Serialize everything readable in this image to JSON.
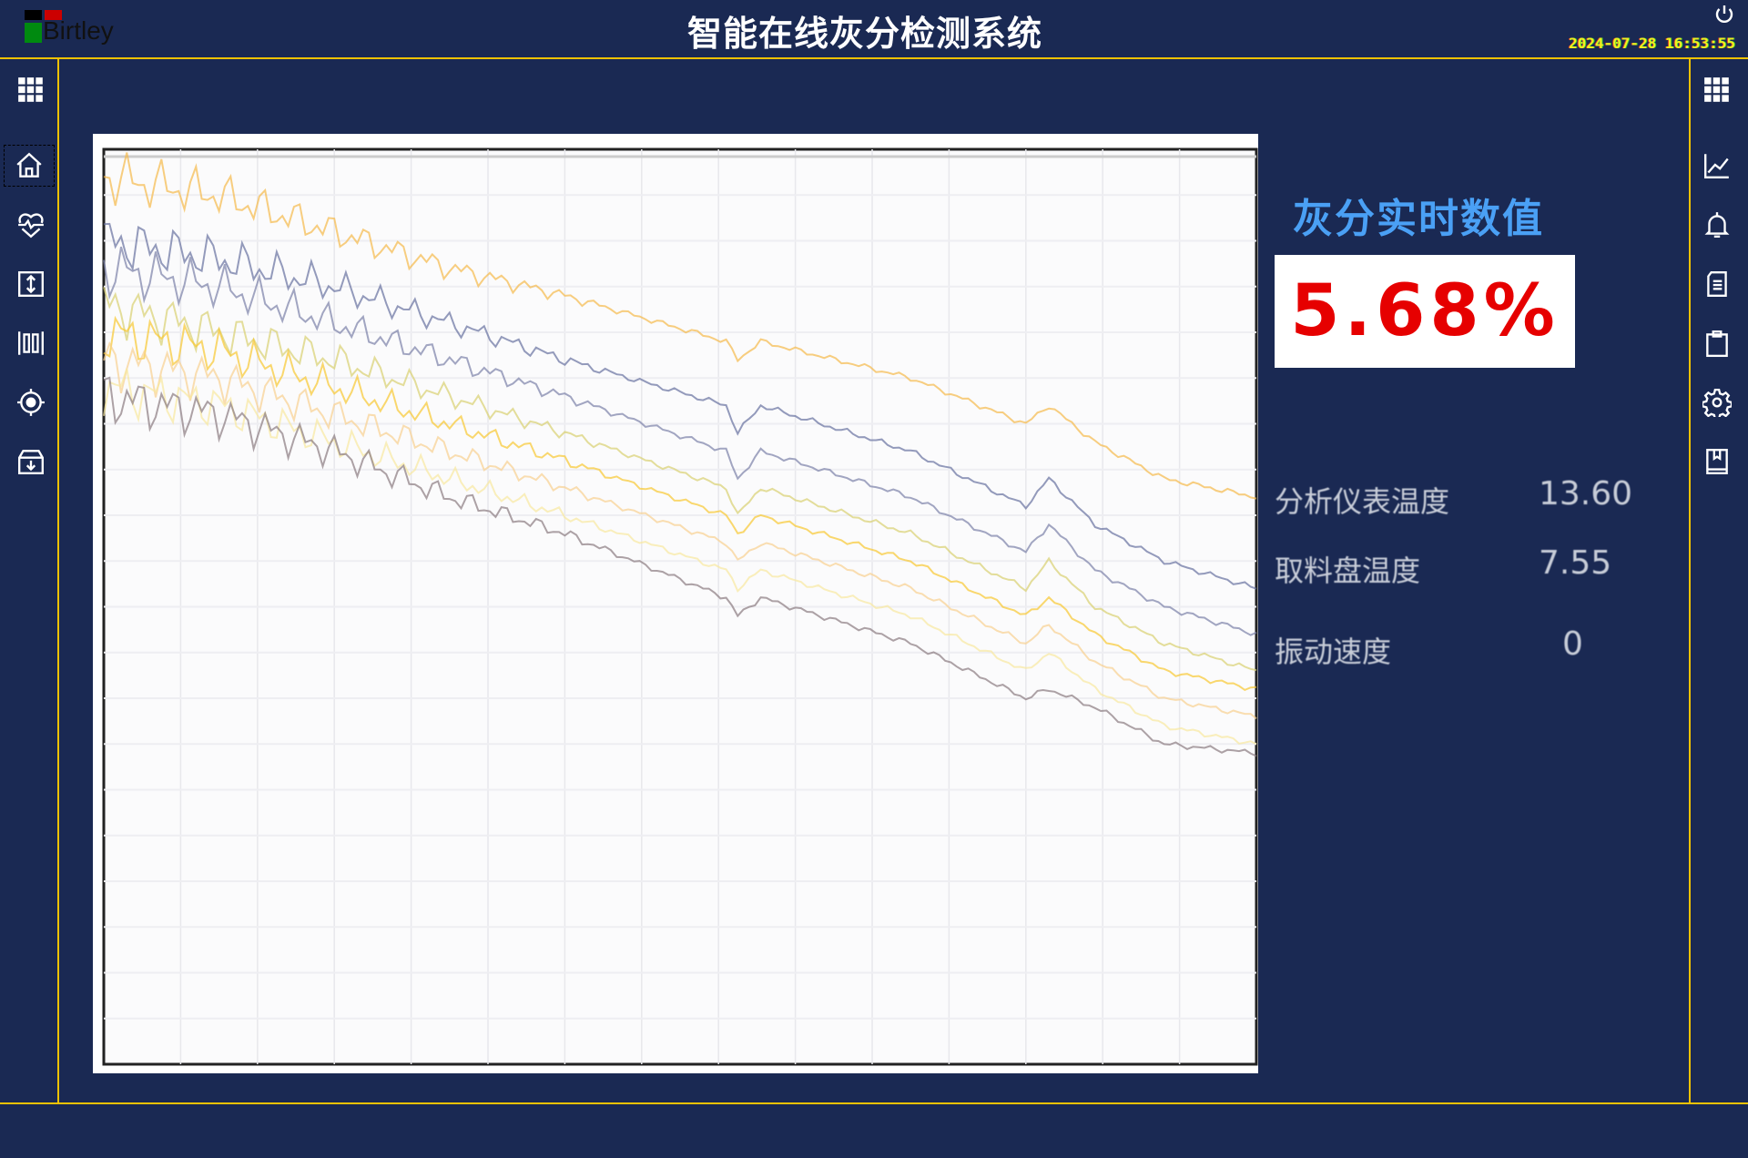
{
  "header": {
    "logo_text": "Birtley",
    "title": "智能在线灰分检测系统",
    "datetime": "2024-07-28  16:53:55"
  },
  "left_nav": [
    {
      "icon": "grid-icon"
    },
    {
      "icon": "home-icon",
      "selected": true
    },
    {
      "icon": "heart-pulse-icon"
    },
    {
      "icon": "vertical-arrows-icon"
    },
    {
      "icon": "columns-icon"
    },
    {
      "icon": "target-icon"
    },
    {
      "icon": "archive-download-icon"
    }
  ],
  "right_nav": [
    {
      "icon": "grid-icon"
    },
    {
      "icon": "line-chart-icon"
    },
    {
      "icon": "bell-icon"
    },
    {
      "icon": "document-icon"
    },
    {
      "icon": "clipboard-icon"
    },
    {
      "icon": "gear-icon"
    },
    {
      "icon": "book-icon"
    }
  ],
  "realtime": {
    "title": "灰分实时数值",
    "value": "5.68%",
    "value_color": "#e60000"
  },
  "readings": [
    {
      "label": "分析仪表温度",
      "value": "13.60"
    },
    {
      "label": "取料盘温度",
      "value": "7.55"
    },
    {
      "label": "振动速度",
      "value": "0"
    }
  ],
  "chart_data": {
    "type": "line",
    "title": "",
    "xlabel": "",
    "ylabel": "",
    "grid": true,
    "xlim": [
      0,
      100
    ],
    "ylim": [
      0,
      100
    ],
    "x": [
      0,
      10,
      20,
      30,
      40,
      54,
      55,
      57,
      70,
      80,
      82,
      86,
      92,
      100
    ],
    "series": [
      {
        "color": "#f5b94a",
        "values": [
          97,
          95,
          91,
          87,
          84,
          79,
          77,
          79,
          75,
          70,
          72,
          68,
          64,
          62
        ]
      },
      {
        "color": "#6670a0",
        "values": [
          90,
          88,
          85,
          81,
          77,
          72,
          69,
          72,
          67,
          61,
          64,
          59,
          55,
          52
        ]
      },
      {
        "color": "#7a80a8",
        "values": [
          87,
          85,
          81,
          77,
          73,
          67,
          64,
          67,
          62,
          56,
          59,
          54,
          50,
          47
        ]
      },
      {
        "color": "#d8d070",
        "values": [
          83,
          80,
          77,
          73,
          69,
          63,
          60,
          63,
          58,
          52,
          55,
          50,
          46,
          43
        ]
      },
      {
        "color": "#f8c830",
        "values": [
          80,
          78,
          74,
          70,
          66,
          60,
          58,
          60,
          55,
          49,
          51,
          47,
          43,
          41
        ]
      },
      {
        "color": "#f8d090",
        "values": [
          77,
          75,
          71,
          67,
          63,
          57,
          55,
          57,
          52,
          46,
          48,
          44,
          40,
          38
        ]
      },
      {
        "color": "#f8e8a0",
        "values": [
          74,
          72,
          68,
          64,
          60,
          54,
          52,
          54,
          49,
          43,
          45,
          41,
          37,
          35
        ]
      },
      {
        "color": "#8a7a80",
        "values": [
          73,
          71,
          67,
          62,
          58,
          51,
          49,
          51,
          46,
          40,
          41,
          39,
          35,
          34
        ]
      }
    ]
  }
}
